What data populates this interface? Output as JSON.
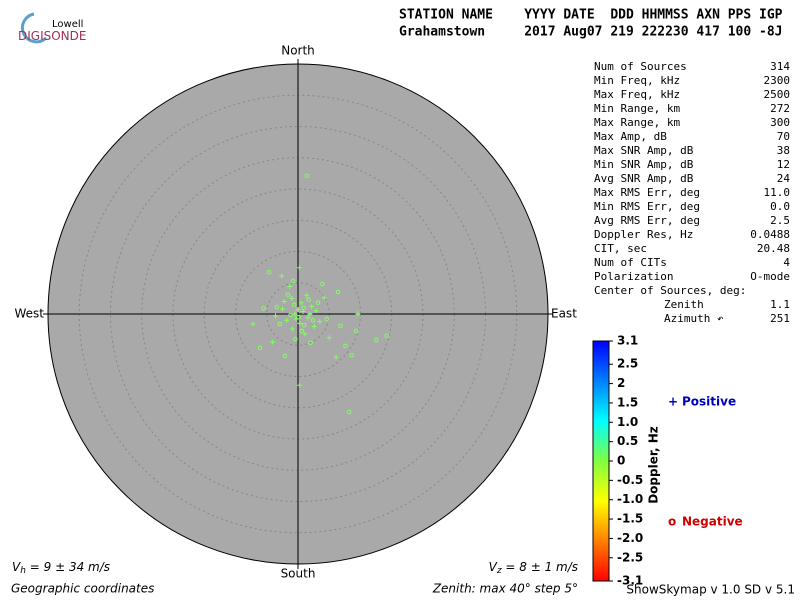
{
  "logo": {
    "top": "Lowell",
    "bottom": "DIGISONDE"
  },
  "header": {
    "labels": "STATION NAME    YYYY DATE  DDD HHMMSS AXN PPS IGP",
    "values": "Grahamstown     2017 Aug07 219 222230 417 100 -8J"
  },
  "chart_data": {
    "type": "polar-scatter",
    "directions": {
      "north": "North",
      "south": "South",
      "east": "East",
      "west": "West"
    },
    "rlim": [
      0,
      40
    ],
    "rgrid": [
      5,
      10,
      15,
      20,
      25,
      30,
      35
    ],
    "disk_color": "#a9a9a9",
    "series": [
      {
        "name": "Positive",
        "marker": "+",
        "color": "#80ff60",
        "legend_color": "#0000c0",
        "x": [
          0.2,
          -2.6,
          1.4,
          -1.0,
          0.5,
          2.2,
          -2.5,
          0.8,
          -0.5,
          1.6,
          -1.8,
          0.3,
          2.6,
          -0.9,
          3.5,
          -3.6,
          9.6,
          -7.2,
          6.1,
          0.2,
          4.2,
          -1.3,
          1.1,
          5.0,
          -4.1,
          0.0,
          1.9,
          -0.3,
          2.9,
          -2.2
        ],
        "y": [
          7.4,
          6.1,
          3.0,
          2.5,
          1.8,
          1.2,
          0.8,
          0.4,
          0.0,
          -0.6,
          -1.0,
          -1.5,
          -2.0,
          -2.4,
          -1.2,
          -0.3,
          0.0,
          -1.6,
          -6.9,
          -11.4,
          2.6,
          4.4,
          -3.2,
          -3.8,
          -4.5,
          0.7,
          0.0,
          -0.8,
          0.5,
          2.0
        ]
      },
      {
        "name": "Negative",
        "marker": "o",
        "color": "#80ff60",
        "legend_color": "#d00000",
        "x": [
          1.4,
          8.2,
          14.2,
          12.5,
          8.6,
          6.4,
          -6.1,
          -4.6,
          -2.1,
          0.9,
          -1.2,
          2.4,
          -0.6,
          1.0,
          -2.9,
          3.2,
          0.1,
          1.7,
          -1.6,
          4.6,
          -3.4,
          0.6,
          2.0,
          -0.4,
          6.8,
          7.6,
          -5.5,
          3.9,
          9.3,
          -0.8
        ],
        "y": [
          22.1,
          -15.7,
          -3.5,
          -4.2,
          -6.6,
          3.5,
          -5.4,
          6.7,
          -6.7,
          1.0,
          -0.2,
          -1.0,
          1.5,
          -1.8,
          -1.6,
          1.8,
          -0.5,
          2.3,
          3.1,
          -0.8,
          1.1,
          -2.7,
          -4.6,
          -4.0,
          -1.9,
          -5.1,
          0.9,
          4.8,
          -2.7,
          5.3
        ]
      }
    ],
    "colorbar": {
      "label": "Doppler, Hz",
      "clim": [
        -3.1,
        3.1
      ],
      "colors": [
        "#ff0000",
        "#ff8000",
        "#ffff00",
        "#80ff40",
        "#00ffff",
        "#0080ff",
        "#0000ff"
      ],
      "ticks": [
        3.1,
        2.5,
        2,
        1.5,
        {
          "value": 1,
          "label": "1.0"
        },
        0.5,
        0,
        -0.5,
        {
          "value": -1,
          "label": "-1.0"
        },
        -1.5,
        {
          "value": -2,
          "label": "-2.0"
        },
        -2.5,
        -3.1
      ]
    }
  },
  "stats": {
    "rows": [
      [
        "Num of Sources",
        "314"
      ],
      [
        "Min Freq, kHz",
        "2300"
      ],
      [
        "Max Freq, kHz",
        "2500"
      ],
      [
        "Min Range, km",
        "272"
      ],
      [
        "Max Range, km",
        "300"
      ],
      [
        "Max Amp, dB",
        "70"
      ],
      [
        "Max SNR Amp, dB",
        "38"
      ],
      [
        "Min SNR Amp, dB",
        "12"
      ],
      [
        "Avg SNR Amp, dB",
        "24"
      ],
      [
        "Max RMS Err, deg",
        "11.0"
      ],
      [
        "Min RMS Err, deg",
        "0.0"
      ],
      [
        "Avg RMS Err, deg",
        "2.5"
      ],
      [
        "Doppler Res, Hz",
        "0.0488"
      ],
      [
        "CIT, sec",
        "20.48"
      ],
      [
        "Num of CITs",
        "4"
      ],
      [
        "Polarization",
        "O-mode"
      ]
    ],
    "center_heading": "Center of Sources, deg:",
    "center_rows": [
      [
        "Zenith",
        "1.1"
      ],
      [
        "Azimuth ↶",
        "251"
      ]
    ]
  },
  "footer": {
    "vh": {
      "symbol": "V",
      "sub": "h",
      "text": " = 9 ± 34 m/s"
    },
    "vz": {
      "symbol": "V",
      "sub": "z",
      "text": " = 8 ± 1 m/s"
    },
    "coords": "Geographic coordinates",
    "zenith": "Zenith: max 40°  step 5°",
    "version": "ShowSkymap v 1.0  SD v 5.1"
  }
}
